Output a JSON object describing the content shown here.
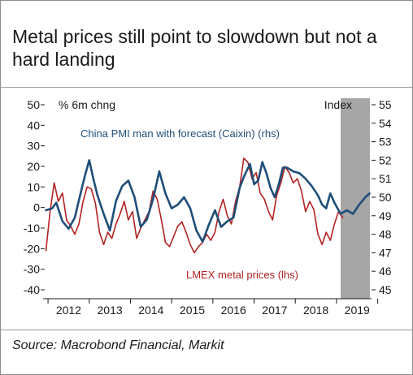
{
  "title": "Metal prices still point to slowdown but not a hard landing",
  "source": "Source: Macrobond Financial, Markit",
  "colors": {
    "pmi": "#1f4e79",
    "lmex": "#b22222",
    "forecast_shade": "#a6a6a6",
    "axis": "#1a1a1a"
  },
  "chart_data": {
    "type": "line",
    "left_axis_label": "% 6m chng",
    "right_axis_label": "Index",
    "x_ticks": [
      "2012",
      "2013",
      "2014",
      "2015",
      "2016",
      "2017",
      "2018",
      "2019"
    ],
    "xlim": [
      2011.9,
      2019.85
    ],
    "forecast_start": 2019.1,
    "left_ylim": [
      -40,
      50
    ],
    "left_ticks": [
      -40,
      -30,
      -20,
      -10,
      0,
      10,
      20,
      30,
      40,
      50
    ],
    "right_ylim": [
      45,
      55
    ],
    "right_ticks": [
      45,
      46,
      47,
      48,
      49,
      50,
      51,
      52,
      53,
      54,
      55
    ],
    "series": [
      {
        "name": "China PMI man with forecast (Caixin) (rhs)",
        "axis": "right",
        "x": [
          2011.95,
          2012.1,
          2012.2,
          2012.35,
          2012.5,
          2012.65,
          2012.8,
          2012.9,
          2013.0,
          2013.1,
          2013.2,
          2013.35,
          2013.5,
          2013.65,
          2013.8,
          2013.95,
          2014.1,
          2014.25,
          2014.4,
          2014.55,
          2014.7,
          2014.85,
          2015.0,
          2015.15,
          2015.3,
          2015.45,
          2015.6,
          2015.75,
          2015.9,
          2016.05,
          2016.2,
          2016.35,
          2016.5,
          2016.65,
          2016.75,
          2016.9,
          2017.0,
          2017.1,
          2017.2,
          2017.3,
          2017.4,
          2017.5,
          2017.6,
          2017.7,
          2017.8,
          2017.95,
          2018.1,
          2018.25,
          2018.4,
          2018.55,
          2018.65,
          2018.75,
          2018.85,
          2018.95,
          2019.1,
          2019.25,
          2019.4,
          2019.55,
          2019.7,
          2019.8
        ],
        "values": [
          49.3,
          49.4,
          49.7,
          48.7,
          48.3,
          48.9,
          50.3,
          51.2,
          52.0,
          51.0,
          50.1,
          49.1,
          48.2,
          49.8,
          50.6,
          50.9,
          50.0,
          48.4,
          48.8,
          49.9,
          51.4,
          50.2,
          49.4,
          49.6,
          50.0,
          49.4,
          48.2,
          47.6,
          48.5,
          49.3,
          48.4,
          48.7,
          48.9,
          50.5,
          51.1,
          51.8,
          50.7,
          50.9,
          51.9,
          51.3,
          50.5,
          50.0,
          50.7,
          51.6,
          51.6,
          51.4,
          51.3,
          51.0,
          50.6,
          50.1,
          49.6,
          49.4,
          50.2,
          49.7,
          49.1,
          49.3,
          49.1,
          49.6,
          50.0,
          50.2
        ]
      },
      {
        "name": "LMEX metal prices (lhs)",
        "axis": "left",
        "x": [
          2011.95,
          2012.05,
          2012.15,
          2012.25,
          2012.35,
          2012.45,
          2012.55,
          2012.65,
          2012.75,
          2012.85,
          2012.95,
          2013.05,
          2013.15,
          2013.25,
          2013.35,
          2013.45,
          2013.55,
          2013.65,
          2013.75,
          2013.85,
          2013.95,
          2014.05,
          2014.15,
          2014.25,
          2014.35,
          2014.45,
          2014.55,
          2014.65,
          2014.75,
          2014.85,
          2014.95,
          2015.05,
          2015.15,
          2015.25,
          2015.35,
          2015.45,
          2015.55,
          2015.65,
          2015.75,
          2015.85,
          2015.95,
          2016.05,
          2016.15,
          2016.25,
          2016.35,
          2016.45,
          2016.55,
          2016.65,
          2016.75,
          2016.85,
          2016.95,
          2017.05,
          2017.15,
          2017.25,
          2017.35,
          2017.45,
          2017.55,
          2017.65,
          2017.75,
          2017.85,
          2017.95,
          2018.05,
          2018.15,
          2018.25,
          2018.35,
          2018.45,
          2018.55,
          2018.65,
          2018.75,
          2018.85,
          2018.95,
          2019.05,
          2019.15
        ],
        "values": [
          -21,
          -2,
          12,
          3,
          7,
          -6,
          -9,
          -13,
          -8,
          3,
          10,
          9,
          2,
          -12,
          -18,
          -12,
          -15,
          -8,
          -3,
          3,
          -6,
          -2,
          -15,
          -10,
          -6,
          -2,
          8,
          4,
          -6,
          -17,
          -19,
          -14,
          -9,
          -7,
          -12,
          -18,
          -22,
          -19,
          -17,
          -13,
          -16,
          -12,
          -2,
          4,
          -4,
          -8,
          3,
          10,
          24,
          22,
          14,
          17,
          7,
          4,
          -2,
          -6,
          6,
          12,
          20,
          17,
          12,
          14,
          8,
          -2,
          3,
          -1,
          -13,
          -18,
          -12,
          -16,
          -8,
          -2,
          -5
        ]
      }
    ],
    "annotations": [
      "China PMI man with forecast (Caixin) (rhs)",
      "LMEX metal prices (lhs)"
    ]
  }
}
